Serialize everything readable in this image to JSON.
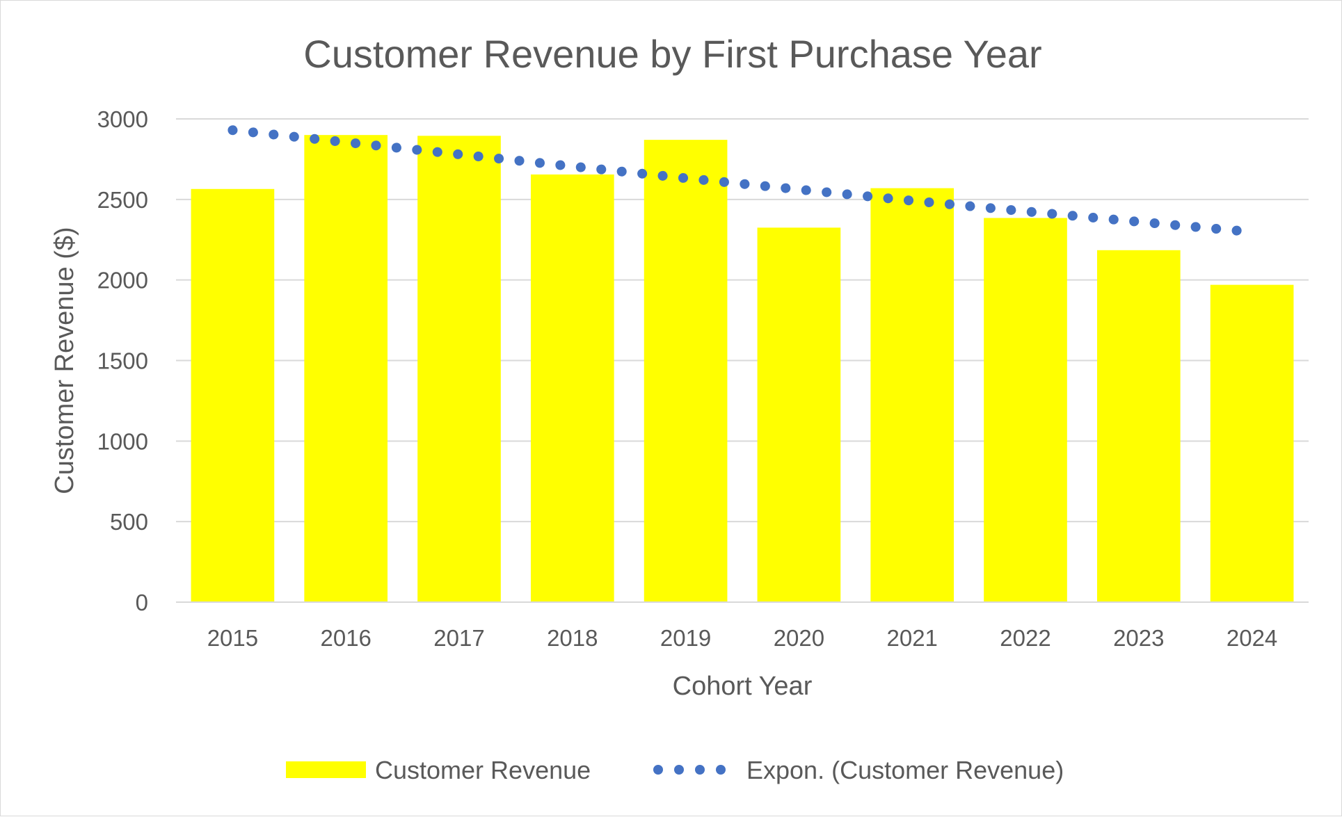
{
  "chart_data": {
    "type": "bar",
    "title": "Customer Revenue by First Purchase Year",
    "xlabel": "Cohort Year",
    "ylabel": "Customer Revenue ($)",
    "categories": [
      "2015",
      "2016",
      "2017",
      "2018",
      "2019",
      "2020",
      "2021",
      "2022",
      "2023",
      "2024"
    ],
    "ylim": [
      0,
      3000
    ],
    "yticks": [
      0,
      500,
      1000,
      1500,
      2000,
      2500,
      3000
    ],
    "grid": true,
    "legend_position": "bottom",
    "series": [
      {
        "name": "Customer Revenue",
        "type": "bar",
        "color": "#FFFF00",
        "values": [
          2565,
          2900,
          2895,
          2655,
          2870,
          2325,
          2570,
          2385,
          2185,
          1970
        ]
      },
      {
        "name": "Expon. (Customer Revenue)",
        "type": "trendline-exponential",
        "style": "dotted",
        "color": "#4472C4",
        "values": [
          2930,
          2855,
          2780,
          2705,
          2632,
          2562,
          2492,
          2426,
          2361,
          2298
        ]
      }
    ]
  }
}
